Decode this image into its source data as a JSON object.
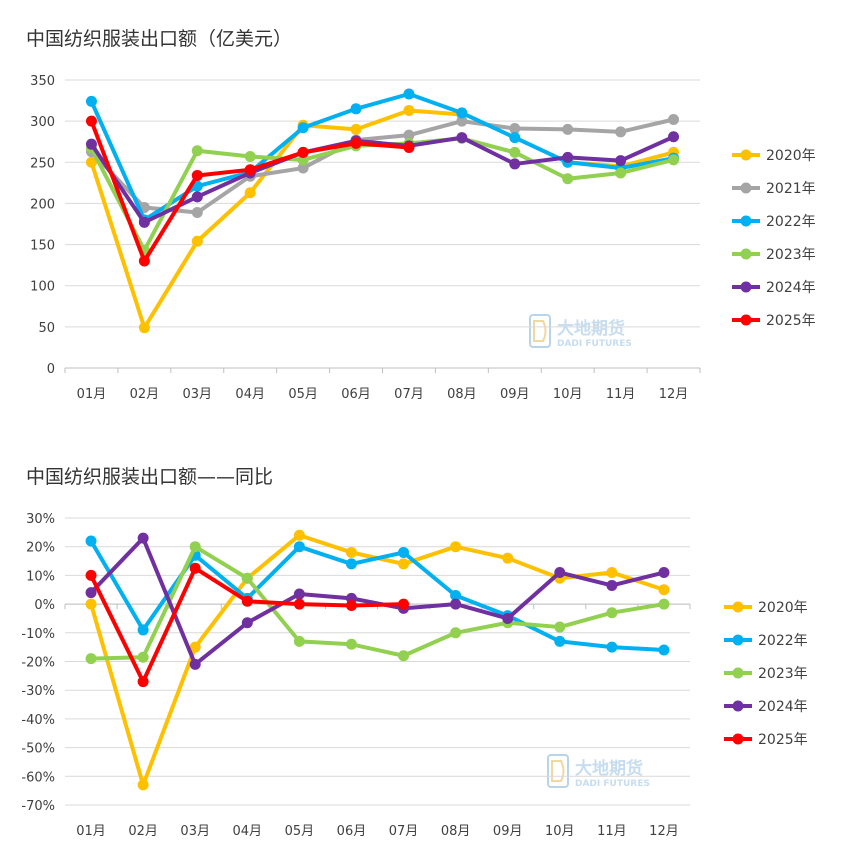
{
  "chart_data": [
    {
      "type": "line",
      "title": "中国纺织服装出口额（亿美元）",
      "categories": [
        "01月",
        "02月",
        "03月",
        "04月",
        "05月",
        "06月",
        "07月",
        "08月",
        "09月",
        "10月",
        "11月",
        "12月"
      ],
      "ylim": [
        0,
        350
      ],
      "yticks": [
        0,
        50,
        100,
        150,
        200,
        250,
        300,
        350
      ],
      "ytick_labels": [
        "0",
        "50",
        "100",
        "150",
        "200",
        "250",
        "300",
        "350"
      ],
      "grid": true,
      "legend_position": "right",
      "watermark": {
        "cn": "大地期货",
        "en": "DADI FUTURES"
      },
      "series": [
        {
          "name": "2020年",
          "color": "#FFC000",
          "values": [
            250,
            49,
            154,
            213,
            295,
            290,
            313,
            308,
            null,
            250,
            245,
            262
          ]
        },
        {
          "name": "2021年",
          "color": "#A5A5A5",
          "values": [
            263,
            195,
            189,
            233,
            243,
            277,
            283,
            300,
            291,
            290,
            287,
            302
          ]
        },
        {
          "name": "2022年",
          "color": "#00B0F0",
          "values": [
            324,
            180,
            221,
            238,
            292,
            315,
            333,
            310,
            280,
            250,
            243,
            255
          ]
        },
        {
          "name": "2023年",
          "color": "#92D050",
          "values": [
            267,
            143,
            264,
            257,
            253,
            270,
            273,
            279,
            262,
            230,
            237,
            253
          ]
        },
        {
          "name": "2024年",
          "color": "#7030A0",
          "values": [
            272,
            177,
            208,
            237,
            262,
            276,
            270,
            280,
            248,
            256,
            252,
            281
          ]
        },
        {
          "name": "2025年",
          "color": "#FF0000",
          "values": [
            300,
            130,
            234,
            241,
            262,
            273,
            268,
            null,
            null,
            null,
            null,
            null
          ]
        }
      ]
    },
    {
      "type": "line",
      "title": "中国纺织服装出口额——同比",
      "categories": [
        "01月",
        "02月",
        "03月",
        "04月",
        "05月",
        "06月",
        "07月",
        "08月",
        "09月",
        "10月",
        "11月",
        "12月"
      ],
      "ylim": [
        -70,
        30
      ],
      "yticks": [
        30,
        20,
        10,
        0,
        -10,
        -20,
        -30,
        -40,
        -50,
        -60,
        -70
      ],
      "ytick_labels": [
        "30%",
        "20%",
        "10%",
        "0%",
        "-10%",
        "-20%",
        "-30%",
        "-40%",
        "-50%",
        "-60%",
        "-70%"
      ],
      "grid": true,
      "legend_position": "right",
      "watermark": {
        "cn": "大地期货",
        "en": "DADI FUTURES"
      },
      "series": [
        {
          "name": "2020年",
          "color": "#FFC000",
          "values": [
            0,
            -63,
            -15,
            9,
            24,
            18,
            14,
            20,
            16,
            9,
            11,
            5
          ]
        },
        {
          "name": "2022年",
          "color": "#00B0F0",
          "values": [
            22,
            -9,
            17,
            2,
            20,
            14,
            18,
            3,
            -4,
            -13,
            -15,
            -16
          ]
        },
        {
          "name": "2023年",
          "color": "#92D050",
          "values": [
            -19,
            -18.5,
            20,
            9,
            -13,
            -14,
            -18,
            -10,
            -6.5,
            -8,
            -3,
            0
          ]
        },
        {
          "name": "2024年",
          "color": "#7030A0",
          "values": [
            4,
            23,
            -21,
            -6.5,
            3.5,
            2,
            -1.5,
            0,
            -5,
            11,
            6.5,
            11
          ]
        },
        {
          "name": "2025年",
          "color": "#FF0000",
          "values": [
            10,
            -27,
            12.5,
            1,
            0,
            -0.5,
            0,
            null,
            null,
            null,
            null,
            null
          ]
        }
      ]
    }
  ]
}
